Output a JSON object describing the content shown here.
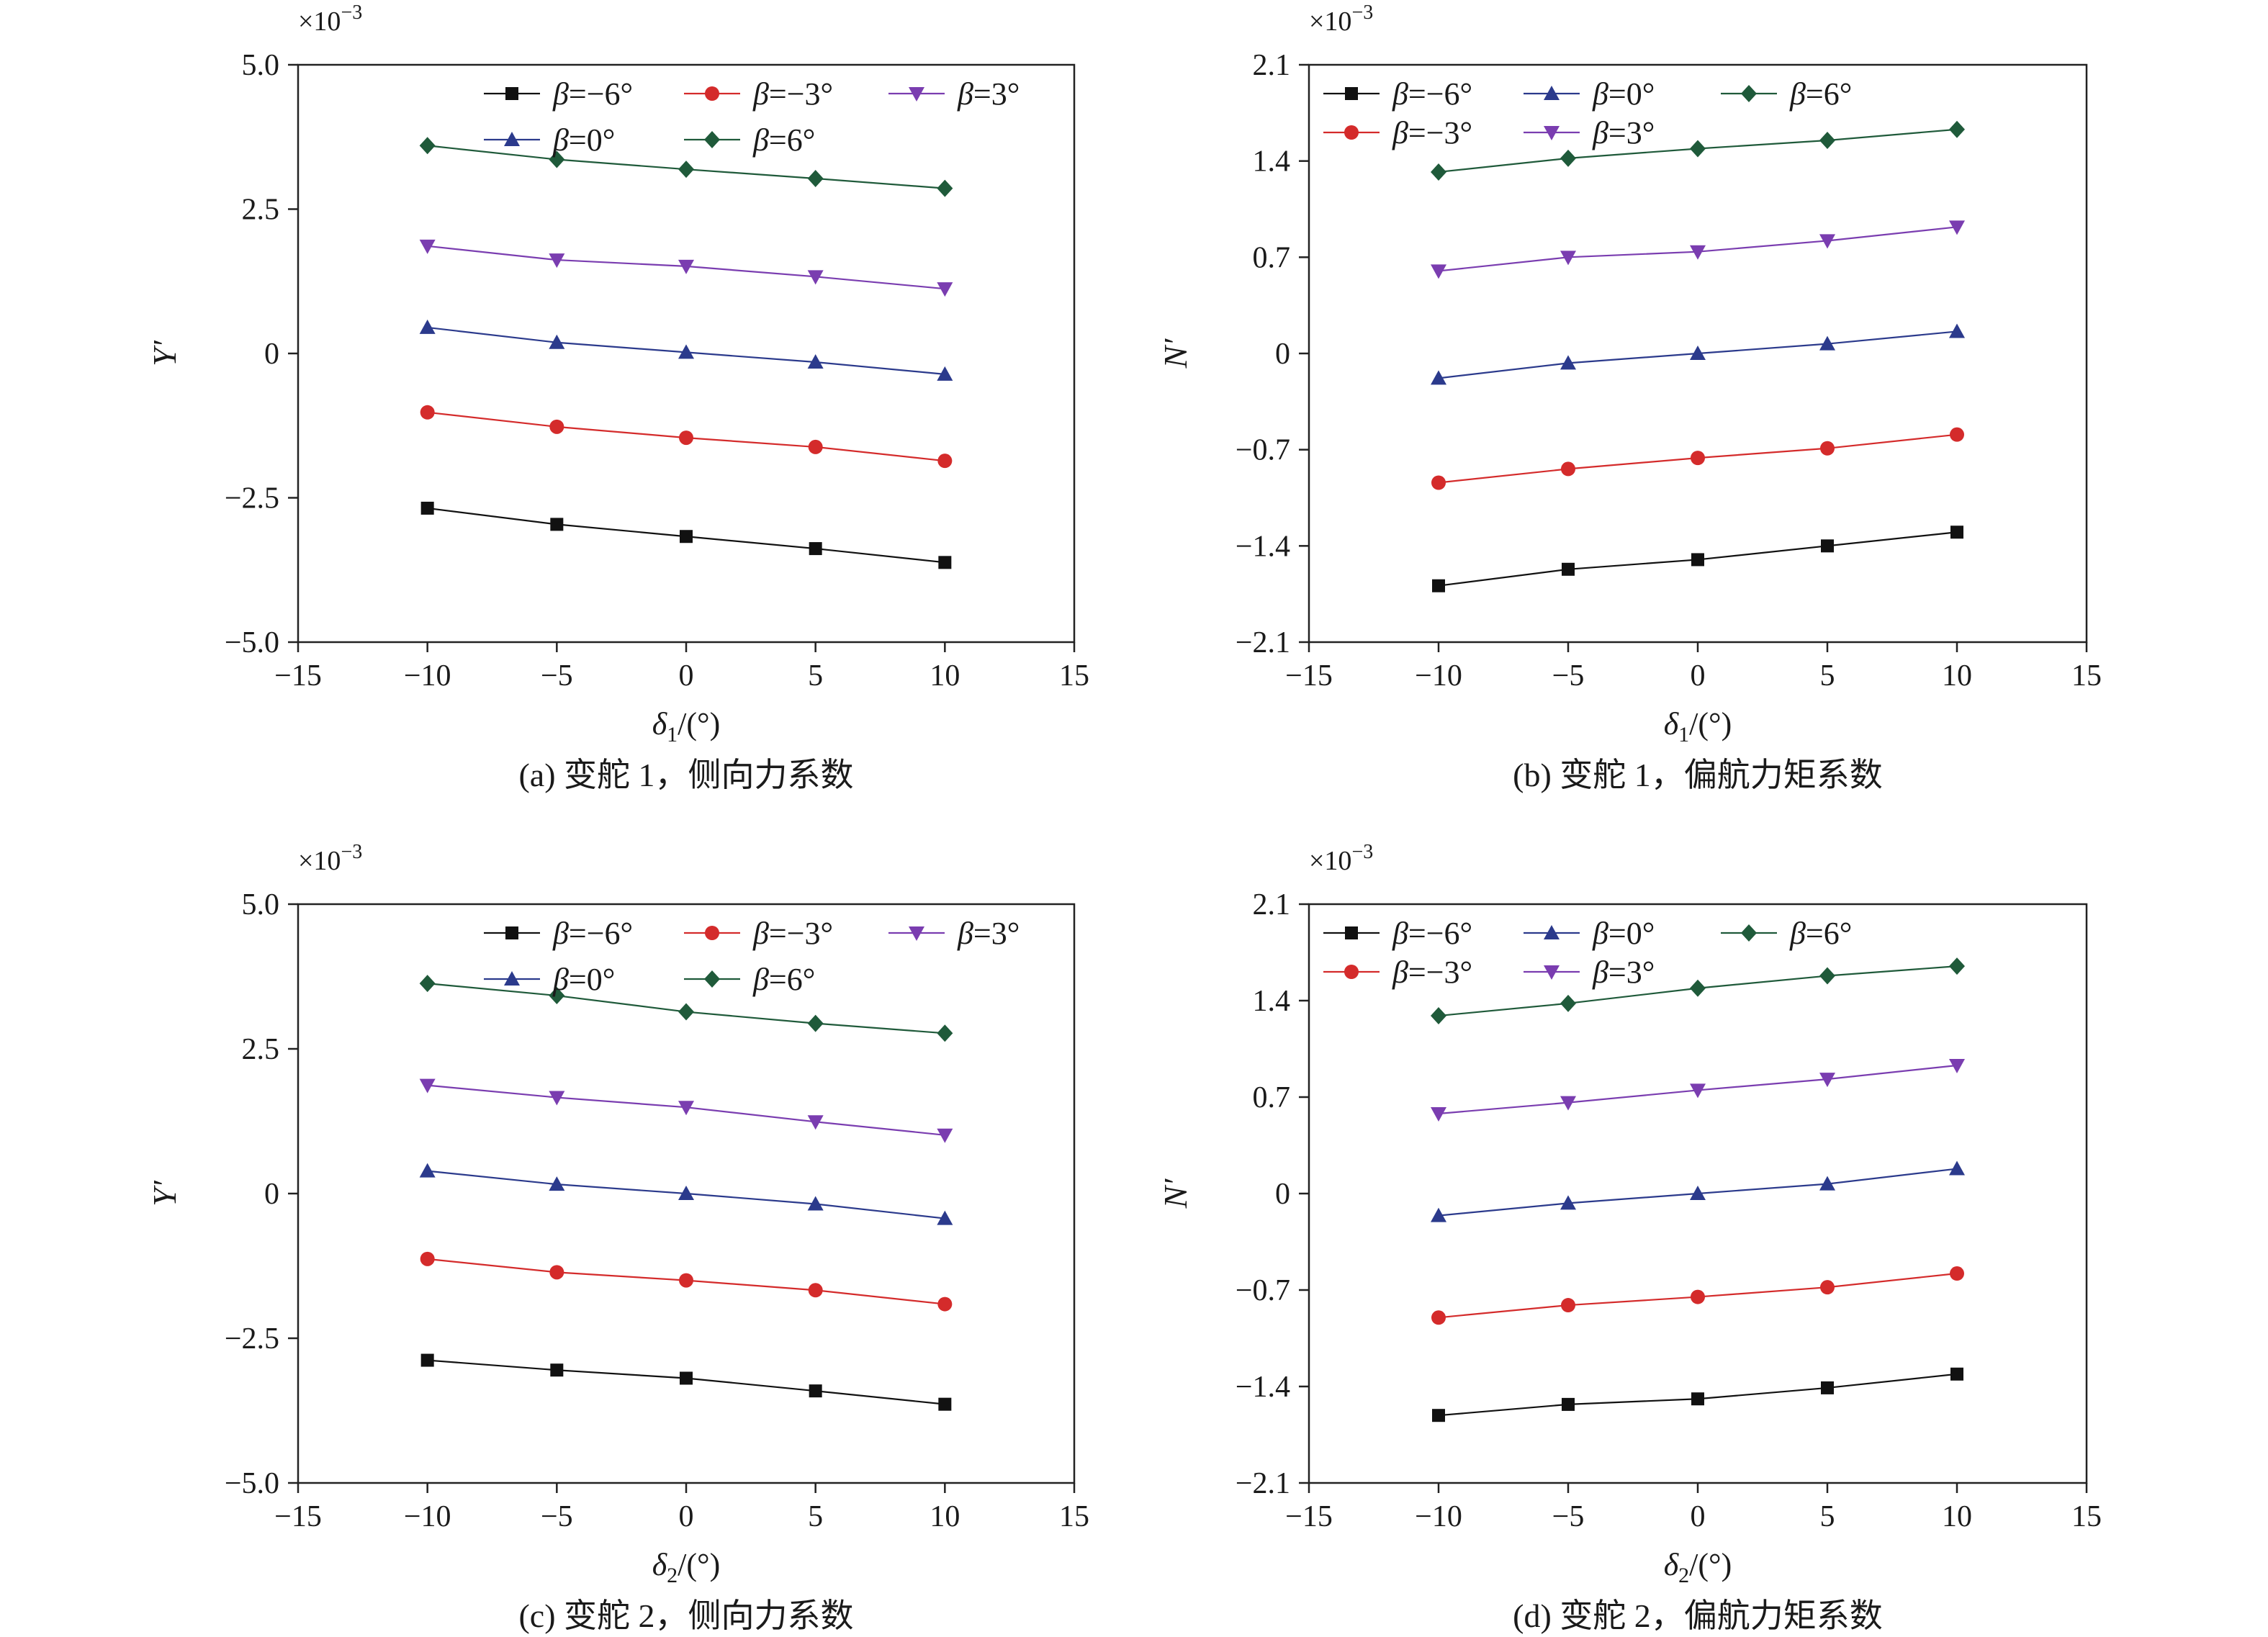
{
  "figure": {
    "panels": [
      {
        "caption": "(a) 变舵 1，侧向力系数",
        "multiplier": "×10",
        "multiplier_exp": "−3",
        "ylabel": "Y′",
        "xlabel_base": "δ",
        "xlabel_sub": "1",
        "xlabel_unit": "/(°)",
        "xticks": [
          "−15",
          "−10",
          "−5",
          "0",
          "5",
          "10",
          "15"
        ],
        "yticks": [
          "−5.0",
          "−2.5",
          "0",
          "2.5",
          "5.0"
        ],
        "legend_rows": [
          [
            "β=−6°",
            "β=−3°",
            "β=3°"
          ],
          [
            "β=0°",
            "β=6°"
          ]
        ]
      },
      {
        "caption": "(b) 变舵 1，偏航力矩系数",
        "multiplier": "×10",
        "multiplier_exp": "−3",
        "ylabel": "N′",
        "xlabel_base": "δ",
        "xlabel_sub": "1",
        "xlabel_unit": "/(°)",
        "xticks": [
          "−15",
          "−10",
          "−5",
          "0",
          "5",
          "10",
          "15"
        ],
        "yticks": [
          "−2.1",
          "−1.4",
          "−0.7",
          "0",
          "0.7",
          "1.4",
          "2.1"
        ],
        "legend_rows": [
          [
            "β=−6°",
            "β=0°",
            "β=6°"
          ],
          [
            "β=−3°",
            "β=3°"
          ]
        ]
      },
      {
        "caption": "(c) 变舵 2，侧向力系数",
        "multiplier": "×10",
        "multiplier_exp": "−3",
        "ylabel": "Y′",
        "xlabel_base": "δ",
        "xlabel_sub": "2",
        "xlabel_unit": "/(°)",
        "xticks": [
          "−15",
          "−10",
          "−5",
          "0",
          "5",
          "10",
          "15"
        ],
        "yticks": [
          "−5.0",
          "−2.5",
          "0",
          "2.5",
          "5.0"
        ],
        "legend_rows": [
          [
            "β=−6°",
            "β=−3°",
            "β=3°"
          ],
          [
            "β=0°",
            "β=6°"
          ]
        ]
      },
      {
        "caption": "(d) 变舵 2，偏航力矩系数",
        "multiplier": "×10",
        "multiplier_exp": "−3",
        "ylabel": "N′",
        "xlabel_base": "δ",
        "xlabel_sub": "2",
        "xlabel_unit": "/(°)",
        "xticks": [
          "−15",
          "−10",
          "−5",
          "0",
          "5",
          "10",
          "15"
        ],
        "yticks": [
          "−2.1",
          "−1.4",
          "−0.7",
          "0",
          "0.7",
          "1.4",
          "2.1"
        ],
        "legend_rows": [
          [
            "β=−6°",
            "β=0°",
            "β=6°"
          ],
          [
            "β=−3°",
            "β=3°"
          ]
        ]
      }
    ]
  },
  "series_styles": {
    "β=−6°": {
      "color": "#111111",
      "marker": "square"
    },
    "β=−3°": {
      "color": "#d42b2b",
      "marker": "circle"
    },
    "β=0°": {
      "color": "#2b3a8c",
      "marker": "triangle-up"
    },
    "β=3°": {
      "color": "#7a3db0",
      "marker": "triangle-down"
    },
    "β=6°": {
      "color": "#1f5a3a",
      "marker": "diamond"
    }
  },
  "chart_data": [
    {
      "type": "line",
      "title": "(a) 变舵 1，侧向力系数",
      "xlabel": "δ1/(°)",
      "ylabel": "Y′",
      "y_scale_note": "×10−3",
      "xlim": [
        -15,
        15
      ],
      "ylim": [
        -5.0,
        5.0
      ],
      "x": [
        -10,
        -5,
        0,
        5,
        10
      ],
      "series": [
        {
          "name": "β=−6°",
          "values": [
            -2.68,
            -2.96,
            -3.17,
            -3.38,
            -3.62
          ]
        },
        {
          "name": "β=−3°",
          "values": [
            -1.02,
            -1.27,
            -1.46,
            -1.62,
            -1.86
          ]
        },
        {
          "name": "β=0°",
          "values": [
            0.45,
            0.19,
            0.02,
            -0.15,
            -0.36
          ]
        },
        {
          "name": "β=3°",
          "values": [
            1.86,
            1.62,
            1.51,
            1.33,
            1.12
          ]
        },
        {
          "name": "β=6°",
          "values": [
            3.6,
            3.36,
            3.19,
            3.03,
            2.86
          ]
        }
      ]
    },
    {
      "type": "line",
      "title": "(b) 变舵 1，偏航力矩系数",
      "xlabel": "δ1/(°)",
      "ylabel": "N′",
      "y_scale_note": "×10−3",
      "xlim": [
        -15,
        15
      ],
      "ylim": [
        -2.1,
        2.1
      ],
      "x": [
        -10,
        -5,
        0,
        5,
        10
      ],
      "series": [
        {
          "name": "β=−6°",
          "values": [
            -1.69,
            -1.57,
            -1.5,
            -1.4,
            -1.3
          ]
        },
        {
          "name": "β=−3°",
          "values": [
            -0.94,
            -0.84,
            -0.76,
            -0.69,
            -0.59
          ]
        },
        {
          "name": "β=0°",
          "values": [
            -0.18,
            -0.07,
            0.0,
            0.07,
            0.16
          ]
        },
        {
          "name": "β=3°",
          "values": [
            0.6,
            0.7,
            0.74,
            0.82,
            0.92
          ]
        },
        {
          "name": "β=6°",
          "values": [
            1.32,
            1.42,
            1.49,
            1.55,
            1.63
          ]
        }
      ]
    },
    {
      "type": "line",
      "title": "(c) 变舵 2，侧向力系数",
      "xlabel": "δ2/(°)",
      "ylabel": "Y′",
      "y_scale_note": "×10−3",
      "xlim": [
        -15,
        15
      ],
      "ylim": [
        -5.0,
        5.0
      ],
      "x": [
        -10,
        -5,
        0,
        5,
        10
      ],
      "series": [
        {
          "name": "β=−6°",
          "values": [
            -2.88,
            -3.05,
            -3.19,
            -3.41,
            -3.64
          ]
        },
        {
          "name": "β=−3°",
          "values": [
            -1.13,
            -1.36,
            -1.5,
            -1.67,
            -1.91
          ]
        },
        {
          "name": "β=0°",
          "values": [
            0.39,
            0.16,
            0.0,
            -0.18,
            -0.43
          ]
        },
        {
          "name": "β=3°",
          "values": [
            1.87,
            1.66,
            1.49,
            1.24,
            1.01
          ]
        },
        {
          "name": "β=6°",
          "values": [
            3.63,
            3.42,
            3.14,
            2.94,
            2.77
          ]
        }
      ]
    },
    {
      "type": "line",
      "title": "(d) 变舵 2，偏航力矩系数",
      "xlabel": "δ2/(°)",
      "ylabel": "N′",
      "y_scale_note": "×10−3",
      "xlim": [
        -15,
        15
      ],
      "ylim": [
        -2.1,
        2.1
      ],
      "x": [
        -10,
        -5,
        0,
        5,
        10
      ],
      "series": [
        {
          "name": "β=−6°",
          "values": [
            -1.61,
            -1.53,
            -1.49,
            -1.41,
            -1.31
          ]
        },
        {
          "name": "β=−3°",
          "values": [
            -0.9,
            -0.81,
            -0.75,
            -0.68,
            -0.58
          ]
        },
        {
          "name": "β=0°",
          "values": [
            -0.16,
            -0.07,
            0.0,
            0.07,
            0.18
          ]
        },
        {
          "name": "β=3°",
          "values": [
            0.58,
            0.66,
            0.75,
            0.83,
            0.93
          ]
        },
        {
          "name": "β=6°",
          "values": [
            1.29,
            1.38,
            1.49,
            1.58,
            1.65
          ]
        }
      ]
    }
  ]
}
